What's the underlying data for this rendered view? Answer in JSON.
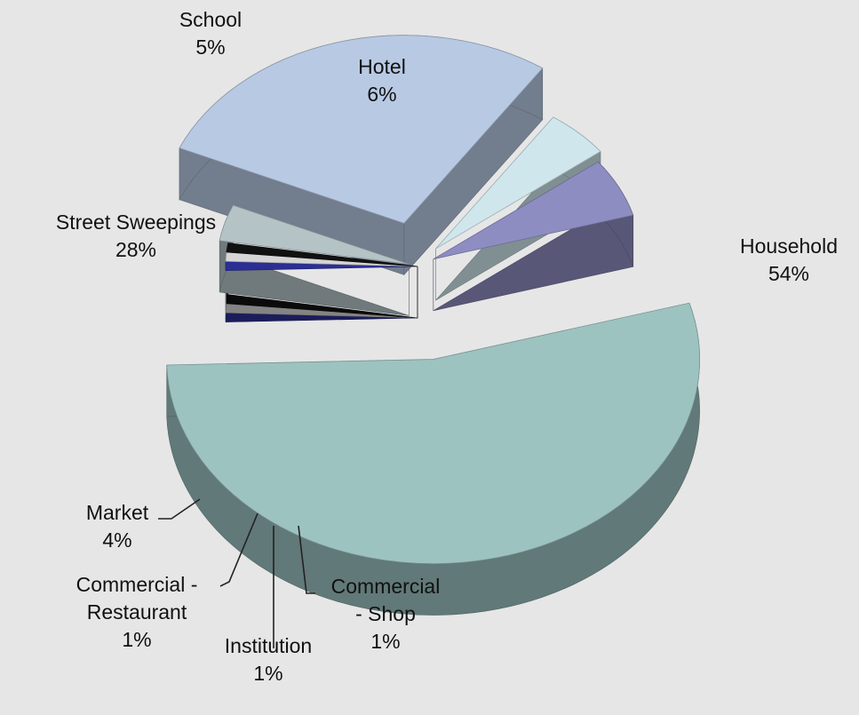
{
  "chart_data": {
    "type": "pie",
    "style": "3d-exploded",
    "slices": [
      {
        "name": "Household",
        "label_lines": [
          "Household",
          "54%"
        ],
        "value": 54,
        "color": "#9dc3c1"
      },
      {
        "name": "Commercial - Shop",
        "label_lines": [
          "Commercial",
          "- Shop",
          "1%"
        ],
        "value": 1,
        "color": "#2b2f93"
      },
      {
        "name": "Institution",
        "label_lines": [
          "Institution",
          "1%"
        ],
        "value": 1,
        "color": "#d5d5d5"
      },
      {
        "name": "Commercial - Restaurant",
        "label_lines": [
          "Commercial -",
          "Restaurant",
          "1%"
        ],
        "value": 1,
        "color": "#111111"
      },
      {
        "name": "Market",
        "label_lines": [
          "Market",
          "4%"
        ],
        "value": 4,
        "color": "#b4c3c6"
      },
      {
        "name": "Street Sweepings",
        "label_lines": [
          "Street Sweepings",
          "28%"
        ],
        "value": 28,
        "color": "#b8c9e3"
      },
      {
        "name": "School",
        "label_lines": [
          "School",
          "5%"
        ],
        "value": 5,
        "color": "#cfe7ec"
      },
      {
        "name": "Hotel",
        "label_lines": [
          "Hotel",
          "6%"
        ],
        "value": 6,
        "color": "#8e8dc2"
      }
    ],
    "legend": "none",
    "background": "#e6e6e6"
  }
}
